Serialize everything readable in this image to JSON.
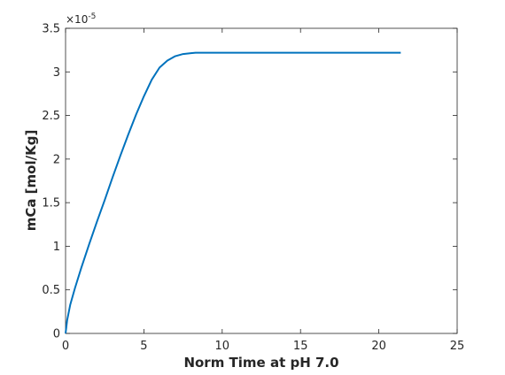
{
  "chart_data": {
    "type": "line",
    "title": "",
    "xlabel": "Norm Time at pH 7.0",
    "ylabel": "mCa [mol/Kg]",
    "y_exponent_label": "×10",
    "y_exponent_power": "-5",
    "xlim": [
      0,
      25
    ],
    "ylim": [
      0,
      3.5
    ],
    "y_scale_factor": 1e-05,
    "x_ticks": [
      0,
      5,
      10,
      15,
      20,
      25
    ],
    "x_tick_labels": [
      "0",
      "5",
      "10",
      "15",
      "20",
      "25"
    ],
    "y_ticks": [
      0,
      0.5,
      1,
      1.5,
      2,
      2.5,
      3,
      3.5
    ],
    "y_tick_labels": [
      "0",
      "0.5",
      "1",
      "1.5",
      "2",
      "2.5",
      "3",
      "3.5"
    ],
    "grid": false,
    "legend": "none",
    "series": [
      {
        "color": "#0072bd",
        "x": [
          0,
          0.1,
          0.3,
          0.6,
          1.0,
          1.5,
          2.0,
          2.5,
          3.0,
          3.5,
          4.0,
          4.5,
          5.0,
          5.5,
          6.0,
          6.5,
          7.0,
          7.5,
          8.0,
          8.3,
          8.6,
          9.0,
          10,
          12,
          14,
          16,
          18,
          20,
          21.4
        ],
        "y": [
          0,
          0.15,
          0.33,
          0.52,
          0.75,
          1.02,
          1.28,
          1.53,
          1.79,
          2.04,
          2.28,
          2.51,
          2.72,
          2.91,
          3.05,
          3.13,
          3.18,
          3.205,
          3.215,
          3.22,
          3.22,
          3.22,
          3.22,
          3.22,
          3.22,
          3.22,
          3.22,
          3.22,
          3.22
        ]
      }
    ]
  }
}
